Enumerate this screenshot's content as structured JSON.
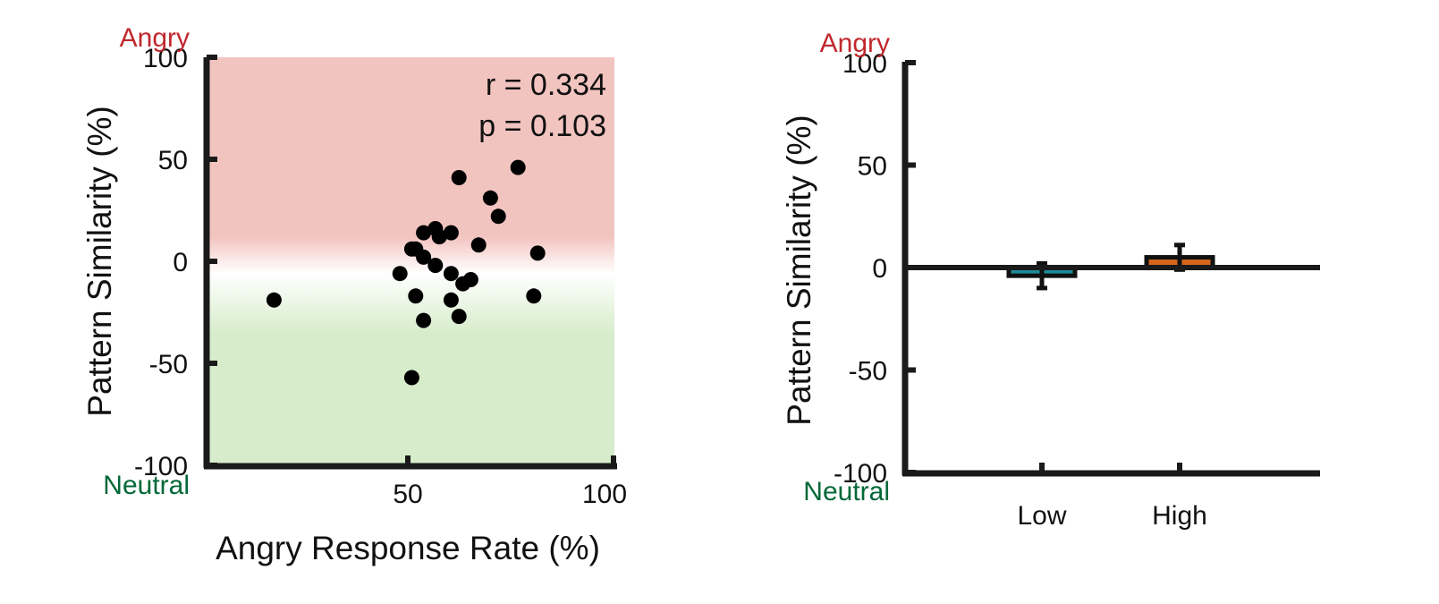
{
  "colors": {
    "angry_red": "#c0272d",
    "neutral_green": "#006837",
    "bg_angry": "#f2c4c0",
    "bg_neutral": "#d6ecca",
    "axis": "#1a1a1a",
    "dot": "#000000",
    "bar_low": "#1d8a99",
    "bar_high": "#d4661e"
  },
  "chart_data": [
    {
      "type": "scatter",
      "xlabel": "Angry Response Rate (%)",
      "ylabel": "Pattern Similarity (%)",
      "xlim": [
        0,
        100
      ],
      "ylim": [
        -100,
        100
      ],
      "xticks": [
        "50",
        "100"
      ],
      "yticks": [
        "100",
        "50",
        "0",
        "-50",
        "-100"
      ],
      "top_label": "Angry",
      "bottom_label": "Neutral",
      "stats": [
        "r = 0.334",
        "p = 0.103"
      ],
      "background": "gradient: red (Angry) at top, white at 0, green (Neutral) at bottom",
      "points": [
        {
          "x": 16,
          "y": -19
        },
        {
          "x": 48,
          "y": -6
        },
        {
          "x": 51,
          "y": 6
        },
        {
          "x": 51,
          "y": -57
        },
        {
          "x": 52,
          "y": 6
        },
        {
          "x": 52,
          "y": -17
        },
        {
          "x": 54,
          "y": 14
        },
        {
          "x": 54,
          "y": 2
        },
        {
          "x": 54,
          "y": -29
        },
        {
          "x": 57,
          "y": 16
        },
        {
          "x": 57,
          "y": -2
        },
        {
          "x": 58,
          "y": 12
        },
        {
          "x": 61,
          "y": 14
        },
        {
          "x": 61,
          "y": -6
        },
        {
          "x": 61,
          "y": -19
        },
        {
          "x": 63,
          "y": 41
        },
        {
          "x": 63,
          "y": -27
        },
        {
          "x": 64,
          "y": -11
        },
        {
          "x": 66,
          "y": -9
        },
        {
          "x": 68,
          "y": 8
        },
        {
          "x": 71,
          "y": 31
        },
        {
          "x": 73,
          "y": 22
        },
        {
          "x": 78,
          "y": 46
        },
        {
          "x": 82,
          "y": -17
        },
        {
          "x": 83,
          "y": 4
        }
      ]
    },
    {
      "type": "bar",
      "ylabel": "Pattern Similarity (%)",
      "ylim": [
        -100,
        100
      ],
      "yticks": [
        "100",
        "50",
        "0",
        "-50",
        "-100"
      ],
      "top_label": "Angry",
      "bottom_label": "Neutral",
      "categories": [
        "Low",
        "High"
      ],
      "values": [
        -4,
        5
      ],
      "errors": [
        6,
        6
      ]
    }
  ]
}
